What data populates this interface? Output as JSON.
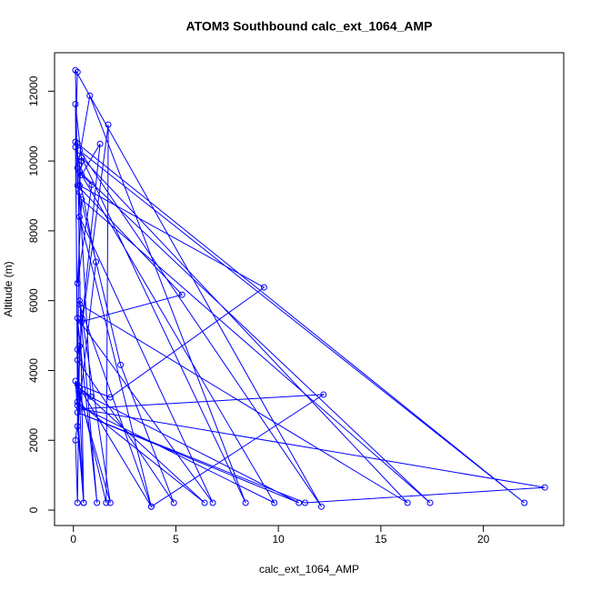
{
  "chart_data": {
    "type": "line",
    "title": "ATOM3 Southbound calc_ext_1064_AMP",
    "x_label": "calc_ext_1064_AMP",
    "y_label": "Altitude (m)",
    "color": "#0000ff",
    "x": [
      0.2,
      0.1,
      0.3,
      0.2,
      0.5,
      0.2,
      22,
      0.3,
      12.1,
      0.1,
      0.2,
      5.3,
      0.4,
      0.2,
      9.8,
      0.3,
      17.4,
      0.4,
      0.2,
      0.9,
      0.4,
      1.3,
      0.3,
      0.2,
      0.1,
      1.1,
      0.2,
      0.8,
      8.4,
      0.4,
      16.3,
      0.3,
      3.8,
      0.2,
      1.8,
      9.3,
      0.3,
      0.4,
      0.1,
      0.2,
      6.4,
      0.3,
      0.85,
      0.3,
      2.3,
      4.9,
      0.2,
      1.7,
      1.6,
      0.3,
      11.0,
      0.2,
      11.3,
      23,
      0.3,
      12.2,
      3.8,
      0.3,
      6.8,
      0.2,
      1.15,
      0.3,
      1.8,
      0.1,
      0.5,
      0.2,
      0.1
    ],
    "values": [
      12550,
      10400,
      9900,
      2400,
      210,
      10500,
      210,
      10300,
      100,
      12600,
      9300,
      6170,
      5400,
      3000,
      210,
      9700,
      210,
      8900,
      6500,
      9320,
      9600,
      10490,
      4700,
      210,
      2000,
      7110,
      9800,
      11870,
      210,
      10100,
      210,
      5900,
      100,
      3600,
      3230,
      6380,
      9300,
      10000,
      11630,
      3100,
      210,
      3500,
      3250,
      9100,
      4160,
      210,
      4300,
      11040,
      210,
      3400,
      210,
      2800,
      210,
      650,
      2900,
      3310,
      100,
      8400,
      210,
      5500,
      210,
      6000,
      210,
      3700,
      210,
      4600,
      10550
    ],
    "xlim": [
      -0.92,
      23.92
    ],
    "ylim": [
      -442,
      13102
    ],
    "xticks": [
      0,
      5,
      10,
      15,
      20
    ],
    "yticks": [
      0,
      2000,
      4000,
      6000,
      8000,
      10000,
      12000
    ]
  }
}
